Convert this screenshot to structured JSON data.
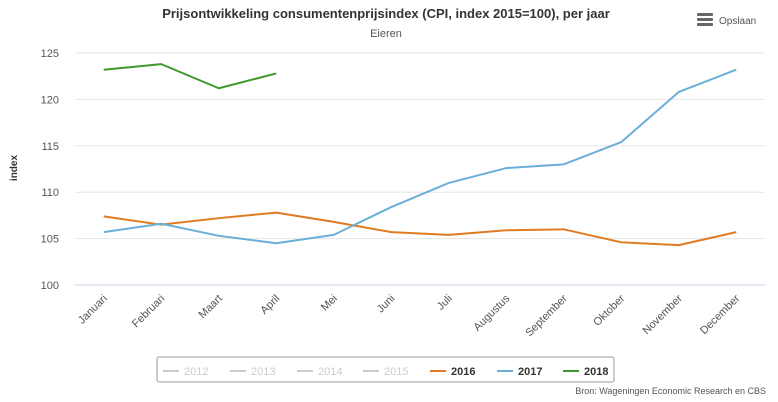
{
  "chart_data": {
    "type": "line",
    "title": "Prijsontwikkeling consumentenprijsindex (CPI, index 2015=100), per jaar",
    "subtitle": "Eieren",
    "y_label": "index",
    "menu_label": "Opslaan",
    "source": "Bron: Wageningen Economic Research en CBS",
    "categories": [
      "Januari",
      "Februari",
      "Maart",
      "April",
      "Mei",
      "Juni",
      "Juli",
      "Augustus",
      "September",
      "Oktober",
      "November",
      "December"
    ],
    "series": [
      {
        "name": "2012",
        "color": "#cccccc",
        "visible": false,
        "values": [
          null,
          null,
          null,
          null,
          null,
          null,
          null,
          null,
          null,
          null,
          null,
          null
        ]
      },
      {
        "name": "2013",
        "color": "#cccccc",
        "visible": false,
        "values": [
          null,
          null,
          null,
          null,
          null,
          null,
          null,
          null,
          null,
          null,
          null,
          null
        ]
      },
      {
        "name": "2014",
        "color": "#cccccc",
        "visible": false,
        "values": [
          null,
          null,
          null,
          null,
          null,
          null,
          null,
          null,
          null,
          null,
          null,
          null
        ]
      },
      {
        "name": "2015",
        "color": "#cccccc",
        "visible": false,
        "values": [
          null,
          null,
          null,
          null,
          null,
          null,
          null,
          null,
          null,
          null,
          null,
          null
        ]
      },
      {
        "name": "2016",
        "color": "#e07b21",
        "visible": true,
        "values": [
          107.4,
          106.5,
          107.2,
          107.8,
          106.8,
          105.7,
          105.4,
          105.9,
          106.0,
          104.6,
          104.3,
          105.7
        ]
      },
      {
        "name": "2017",
        "color": "#6aafd8",
        "visible": true,
        "values": [
          105.7,
          106.6,
          105.3,
          104.5,
          105.4,
          108.4,
          111.0,
          112.6,
          113.0,
          115.4,
          120.8,
          123.2
        ]
      },
      {
        "name": "2018",
        "color": "#3d9a2a",
        "visible": true,
        "values": [
          123.2,
          123.8,
          121.2,
          122.8,
          null,
          null,
          null,
          null,
          null,
          null,
          null,
          null
        ]
      }
    ],
    "ylim": [
      100,
      125
    ],
    "yticks": [
      100,
      105,
      110,
      115,
      120,
      125
    ],
    "grid": true,
    "legend": "bottom"
  }
}
